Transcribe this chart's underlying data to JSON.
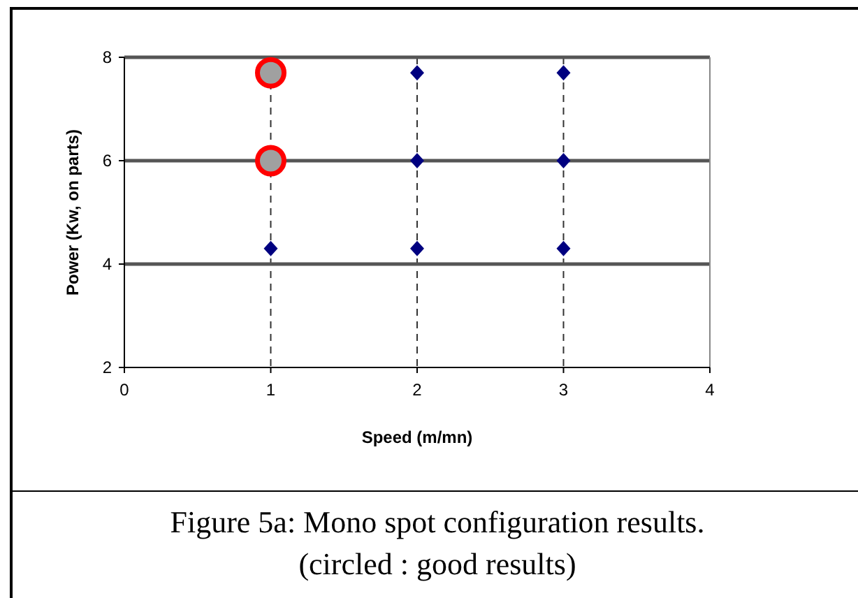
{
  "chart_data": {
    "type": "scatter",
    "xlabel": "Speed (m/mn)",
    "ylabel": "Power (Kw, on parts)",
    "annotations": [
      "Figure 5a: Mono spot configuration results. (circled : good results)"
    ],
    "series": [
      {
        "color": "#000080",
        "marker": "diamond",
        "x": [
          1,
          2,
          3,
          2,
          3
        ],
        "values": [
          4.3,
          4.3,
          4.3,
          6,
          6
        ]
      },
      {
        "color": "#000080",
        "marker": "diamond",
        "x": [
          2,
          3
        ],
        "values": [
          7.7,
          7.7
        ]
      },
      {
        "color": "#ff0000",
        "marker": "circle",
        "x": [
          1,
          1
        ],
        "values": [
          6,
          7.7
        ]
      }
    ],
    "xlim": [
      0,
      4
    ],
    "xticks": [
      0,
      1,
      2,
      3,
      4
    ],
    "ylim": [
      2,
      8
    ],
    "yticks": [
      2,
      4,
      6,
      8
    ],
    "grid": true
  }
}
